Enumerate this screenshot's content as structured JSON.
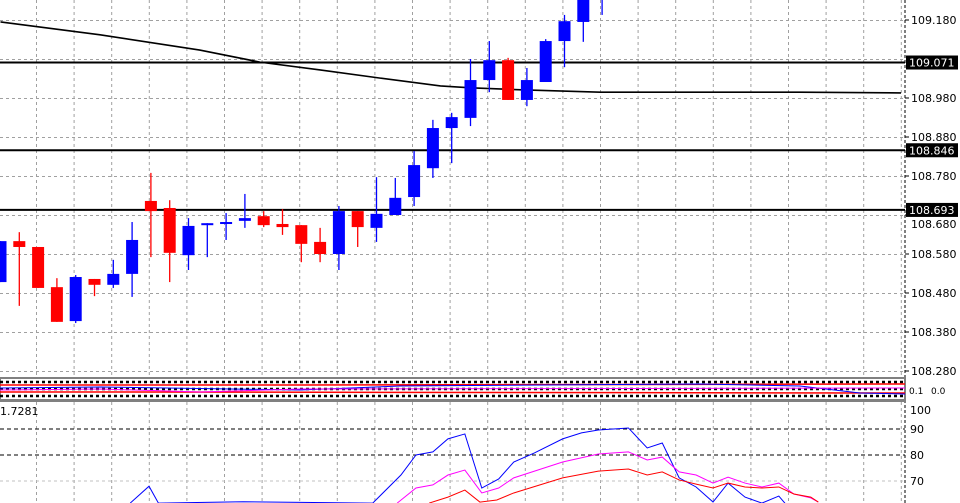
{
  "chart_data": [
    {
      "type": "candlestick",
      "panel": "main",
      "price_axis": {
        "ylim": [
          108.26,
          109.23
        ],
        "tick_labels": [
          "109.180",
          "108.980",
          "108.880",
          "108.780",
          "108.680",
          "108.580",
          "108.480",
          "108.380",
          "108.280"
        ],
        "grid": true
      },
      "colors": {
        "bull": "#0000ff",
        "bear": "#ff0000",
        "lines": "#000000",
        "grid": "#a0a0a0"
      },
      "horizontal_lines": [
        {
          "price": 109.071,
          "label": "109.071"
        },
        {
          "price": 108.846,
          "label": "108.846"
        },
        {
          "price": 108.693,
          "label": "108.693"
        }
      ],
      "candles": [
        {
          "o": 108.508,
          "h": 108.613,
          "l": 108.508,
          "c": 108.613
        },
        {
          "o": 108.613,
          "h": 108.636,
          "l": 108.447,
          "c": 108.598
        },
        {
          "o": 108.598,
          "h": 108.598,
          "l": 108.493,
          "c": 108.493
        },
        {
          "o": 108.495,
          "h": 108.518,
          "l": 108.406,
          "c": 108.406
        },
        {
          "o": 108.408,
          "h": 108.526,
          "l": 108.403,
          "c": 108.521
        },
        {
          "o": 108.516,
          "h": 108.516,
          "l": 108.472,
          "c": 108.501
        },
        {
          "o": 108.501,
          "h": 108.565,
          "l": 108.493,
          "c": 108.529
        },
        {
          "o": 108.529,
          "h": 108.662,
          "l": 108.47,
          "c": 108.616
        },
        {
          "o": 108.716,
          "h": 108.788,
          "l": 108.572,
          "c": 108.69
        },
        {
          "o": 108.698,
          "h": 108.718,
          "l": 108.508,
          "c": 108.583
        },
        {
          "o": 108.577,
          "h": 108.672,
          "l": 108.539,
          "c": 108.652
        },
        {
          "o": 108.654,
          "h": 108.659,
          "l": 108.572,
          "c": 108.659
        },
        {
          "o": 108.657,
          "h": 108.685,
          "l": 108.616,
          "c": 108.662
        },
        {
          "o": 108.665,
          "h": 108.734,
          "l": 108.647,
          "c": 108.672
        },
        {
          "o": 108.677,
          "h": 108.69,
          "l": 108.649,
          "c": 108.654
        },
        {
          "o": 108.657,
          "h": 108.695,
          "l": 108.629,
          "c": 108.649
        },
        {
          "o": 108.654,
          "h": 108.654,
          "l": 108.559,
          "c": 108.606
        },
        {
          "o": 108.611,
          "h": 108.647,
          "l": 108.559,
          "c": 108.58
        },
        {
          "o": 108.58,
          "h": 108.703,
          "l": 108.539,
          "c": 108.69
        },
        {
          "o": 108.69,
          "h": 108.69,
          "l": 108.598,
          "c": 108.649
        },
        {
          "o": 108.647,
          "h": 108.777,
          "l": 108.611,
          "c": 108.683
        },
        {
          "o": 108.68,
          "h": 108.775,
          "l": 108.68,
          "c": 108.724
        },
        {
          "o": 108.726,
          "h": 108.844,
          "l": 108.703,
          "c": 108.808
        },
        {
          "o": 108.8,
          "h": 108.924,
          "l": 108.775,
          "c": 108.903
        },
        {
          "o": 108.903,
          "h": 108.942,
          "l": 108.813,
          "c": 108.931
        },
        {
          "o": 108.929,
          "h": 109.08,
          "l": 108.908,
          "c": 109.026
        },
        {
          "o": 109.026,
          "h": 109.126,
          "l": 108.995,
          "c": 109.077
        },
        {
          "o": 109.077,
          "h": 109.083,
          "l": 108.975,
          "c": 108.975
        },
        {
          "o": 108.975,
          "h": 109.057,
          "l": 108.959,
          "c": 109.026
        },
        {
          "o": 109.021,
          "h": 109.131,
          "l": 109.021,
          "c": 109.126
        },
        {
          "o": 109.126,
          "h": 109.193,
          "l": 109.059,
          "c": 109.177
        },
        {
          "o": 109.175,
          "h": 109.25,
          "l": 109.124,
          "c": 109.24
        },
        {
          "o": 109.26,
          "h": 109.3,
          "l": 109.193,
          "c": 109.29
        }
      ],
      "moving_average": [
        [
          0,
          109.175
        ],
        [
          5.3,
          109.142
        ],
        [
          10.6,
          109.103
        ],
        [
          13.8,
          109.072
        ],
        [
          17,
          109.052
        ],
        [
          20.2,
          109.031
        ],
        [
          23.4,
          109.011
        ],
        [
          25,
          109.006
        ],
        [
          27.7,
          109.001
        ],
        [
          31.9,
          108.995
        ],
        [
          37.2,
          108.995
        ],
        [
          42.5,
          108.995
        ],
        [
          47.9,
          108.993
        ]
      ]
    },
    {
      "type": "line",
      "panel": "oscillator-small",
      "tick_labels": [
        "0.1",
        "0.0"
      ]
    },
    {
      "type": "line",
      "panel": "stochastic",
      "ylim": [
        60,
        102
      ],
      "tick_labels": [
        "100",
        "90",
        "80",
        "70"
      ],
      "levels": [
        90,
        80
      ],
      "value_label": "1.7281",
      "series": [
        {
          "color": "#0000ff",
          "points": [
            [
              6.9,
              61.5
            ],
            [
              7.9,
              68
            ],
            [
              8.4,
              61.5
            ],
            [
              12.9,
              62
            ],
            [
              19.8,
              61.5
            ],
            [
              21.3,
              72.3
            ],
            [
              22.1,
              80
            ],
            [
              23,
              81.2
            ],
            [
              23.8,
              86.2
            ],
            [
              24.7,
              88.1
            ],
            [
              25.6,
              67.3
            ],
            [
              26.5,
              70.8
            ],
            [
              27.3,
              77.3
            ],
            [
              28.4,
              80.8
            ],
            [
              29.9,
              86.2
            ],
            [
              30.9,
              88.5
            ],
            [
              31.8,
              89.6
            ],
            [
              33.4,
              90.4
            ],
            [
              34.4,
              82.7
            ],
            [
              35.2,
              84.6
            ],
            [
              36.1,
              71.2
            ],
            [
              37,
              67.7
            ],
            [
              37.9,
              61.9
            ],
            [
              38.7,
              69.2
            ],
            [
              39.6,
              63.8
            ],
            [
              40.5,
              61.5
            ],
            [
              41.4,
              64.2
            ],
            [
              41.9,
              60
            ]
          ]
        },
        {
          "color": "#ff00ff",
          "points": [
            [
              21.1,
              61.5
            ],
            [
              22.1,
              67.3
            ],
            [
              23,
              68.5
            ],
            [
              23.8,
              72.3
            ],
            [
              24.7,
              74.2
            ],
            [
              25.6,
              65.4
            ],
            [
              26.5,
              67.3
            ],
            [
              27.3,
              71.2
            ],
            [
              29.9,
              77.3
            ],
            [
              31.8,
              80.4
            ],
            [
              33.4,
              81.2
            ],
            [
              34.4,
              78.1
            ],
            [
              35.2,
              79.2
            ],
            [
              36.1,
              73.5
            ],
            [
              37,
              72.3
            ],
            [
              37.9,
              69.2
            ],
            [
              38.7,
              71.5
            ],
            [
              39.6,
              69.2
            ],
            [
              40.5,
              67.7
            ],
            [
              41.4,
              69.2
            ],
            [
              42.2,
              65
            ],
            [
              43.1,
              63.5
            ],
            [
              43.5,
              61.9
            ]
          ]
        },
        {
          "color": "#ff0000",
          "points": [
            [
              22.8,
              61.5
            ],
            [
              23.8,
              63.8
            ],
            [
              24.7,
              66.5
            ],
            [
              25.5,
              61.9
            ],
            [
              26.4,
              62.7
            ],
            [
              27.3,
              65.4
            ],
            [
              29.9,
              71.2
            ],
            [
              31.8,
              73.8
            ],
            [
              33.4,
              74.6
            ],
            [
              34.4,
              72.3
            ],
            [
              35.2,
              73.5
            ],
            [
              36.1,
              70.4
            ],
            [
              37,
              68.8
            ],
            [
              37.9,
              67.3
            ],
            [
              38.7,
              69.2
            ],
            [
              39.6,
              67.7
            ],
            [
              40.5,
              67.3
            ],
            [
              41.4,
              67.7
            ],
            [
              42.2,
              65
            ],
            [
              43.1,
              63.8
            ],
            [
              43.5,
              61.9
            ]
          ]
        }
      ]
    }
  ]
}
